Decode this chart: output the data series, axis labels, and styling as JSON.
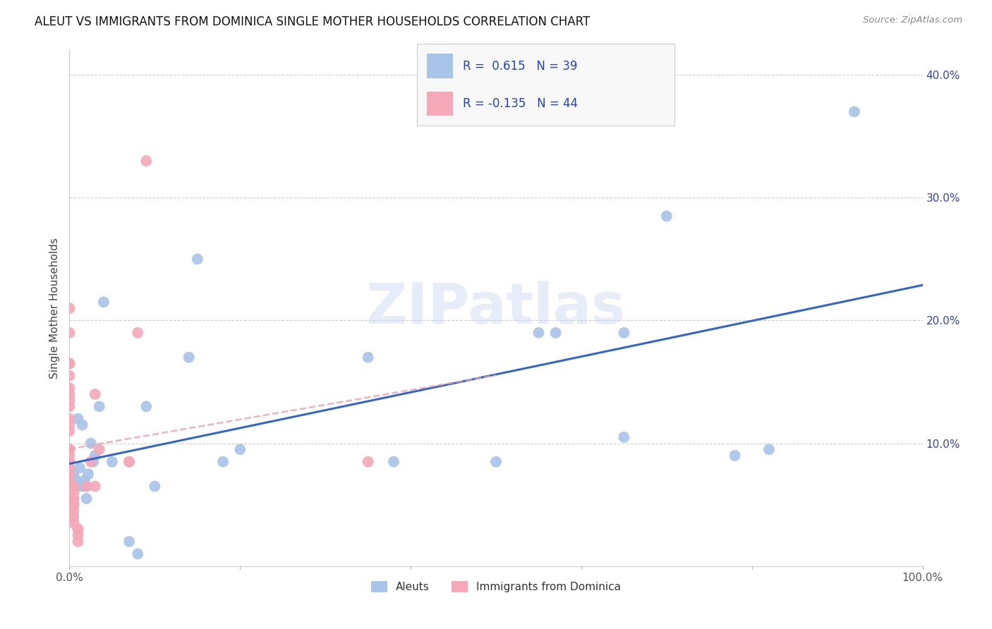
{
  "title": "ALEUT VS IMMIGRANTS FROM DOMINICA SINGLE MOTHER HOUSEHOLDS CORRELATION CHART",
  "source": "Source: ZipAtlas.com",
  "ylabel": "Single Mother Households",
  "xlim": [
    0,
    1.0
  ],
  "ylim": [
    0,
    0.42
  ],
  "yticks": [
    0.0,
    0.1,
    0.2,
    0.3,
    0.4
  ],
  "yticklabels": [
    "",
    "10.0%",
    "20.0%",
    "30.0%",
    "40.0%"
  ],
  "grid_yticks": [
    0.1,
    0.2,
    0.3,
    0.4
  ],
  "aleuts_color": "#a8c4e8",
  "dominica_color": "#f4a8b8",
  "trendline_aleuts_color": "#3366cc",
  "trendline_dominica_color": "#e8a0b0",
  "R_aleuts": 0.615,
  "N_aleuts": 39,
  "R_dominica": -0.135,
  "N_dominica": 44,
  "aleuts_x": [
    0.0,
    0.0,
    0.002,
    0.005,
    0.008,
    0.01,
    0.01,
    0.012,
    0.015,
    0.015,
    0.018,
    0.02,
    0.02,
    0.022,
    0.025,
    0.028,
    0.03,
    0.035,
    0.04,
    0.05,
    0.07,
    0.08,
    0.09,
    0.1,
    0.14,
    0.15,
    0.18,
    0.2,
    0.35,
    0.38,
    0.5,
    0.55,
    0.57,
    0.65,
    0.65,
    0.7,
    0.78,
    0.82,
    0.92
  ],
  "aleuts_y": [
    0.075,
    0.07,
    0.065,
    0.075,
    0.07,
    0.065,
    0.12,
    0.08,
    0.065,
    0.115,
    0.07,
    0.055,
    0.065,
    0.075,
    0.1,
    0.085,
    0.09,
    0.13,
    0.215,
    0.085,
    0.02,
    0.01,
    0.13,
    0.065,
    0.17,
    0.25,
    0.085,
    0.095,
    0.17,
    0.085,
    0.085,
    0.19,
    0.19,
    0.19,
    0.105,
    0.285,
    0.09,
    0.095,
    0.37
  ],
  "dominica_x": [
    0.0,
    0.0,
    0.0,
    0.0,
    0.0,
    0.0,
    0.0,
    0.0,
    0.0,
    0.0,
    0.0,
    0.0,
    0.0,
    0.0,
    0.0,
    0.0,
    0.0,
    0.0,
    0.0,
    0.0,
    0.005,
    0.005,
    0.005,
    0.005,
    0.005,
    0.005,
    0.005,
    0.005,
    0.005,
    0.005,
    0.01,
    0.01,
    0.01,
    0.01,
    0.02,
    0.025,
    0.03,
    0.03,
    0.035,
    0.07,
    0.07,
    0.08,
    0.09,
    0.35
  ],
  "dominica_y": [
    0.21,
    0.19,
    0.165,
    0.165,
    0.155,
    0.145,
    0.14,
    0.135,
    0.13,
    0.12,
    0.115,
    0.11,
    0.095,
    0.095,
    0.09,
    0.085,
    0.085,
    0.08,
    0.075,
    0.07,
    0.065,
    0.065,
    0.06,
    0.055,
    0.055,
    0.05,
    0.05,
    0.045,
    0.04,
    0.035,
    0.03,
    0.03,
    0.025,
    0.02,
    0.065,
    0.085,
    0.14,
    0.065,
    0.095,
    0.085,
    0.085,
    0.19,
    0.33,
    0.085
  ],
  "watermark": "ZIPatlas",
  "background_color": "#ffffff",
  "figsize": [
    14.06,
    8.92
  ],
  "dpi": 100
}
